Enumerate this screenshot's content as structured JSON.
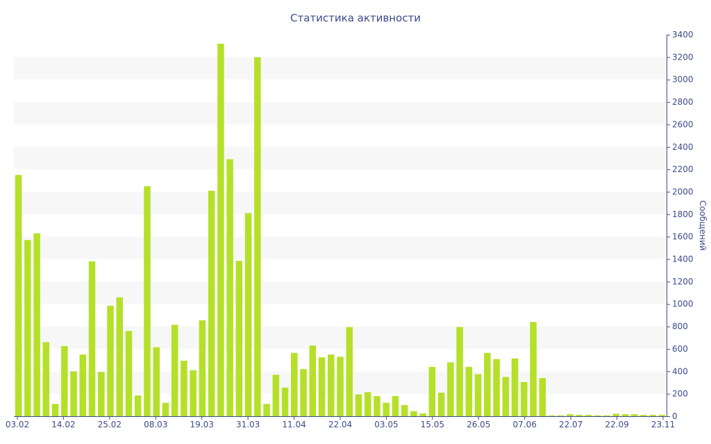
{
  "chart_data": {
    "type": "bar",
    "title": "Статистика активности",
    "ylabel": "Сообщений",
    "ylim": [
      0,
      3400
    ],
    "yticks": [
      0,
      200,
      400,
      600,
      800,
      1000,
      1200,
      1400,
      1600,
      1800,
      2000,
      2200,
      2400,
      2600,
      2800,
      3000,
      3200,
      3400
    ],
    "x_tick_labels": [
      "03.02",
      "14.02",
      "25.02",
      "08.03",
      "19.03",
      "31.03",
      "11.04",
      "22.04",
      "03.05",
      "15.05",
      "26.05",
      "07.06",
      "22.07",
      "22.09",
      "23.11"
    ],
    "bar_color": "#b5e02a",
    "band_color": "#f7f7f7",
    "axis_color": "#3b4a8a",
    "y_axis_position": "right",
    "values": [
      2150,
      1570,
      1630,
      660,
      110,
      625,
      400,
      550,
      1380,
      395,
      985,
      1060,
      760,
      185,
      2050,
      615,
      120,
      815,
      495,
      410,
      855,
      2010,
      3320,
      2290,
      1385,
      1810,
      3200,
      110,
      370,
      255,
      565,
      420,
      630,
      525,
      550,
      530,
      795,
      195,
      215,
      180,
      120,
      180,
      100,
      45,
      25,
      440,
      210,
      480,
      795,
      440,
      375,
      565,
      510,
      350,
      515,
      305,
      840,
      340,
      8,
      8,
      18,
      12,
      12,
      8,
      8,
      22,
      18,
      18,
      12,
      12,
      12
    ]
  }
}
